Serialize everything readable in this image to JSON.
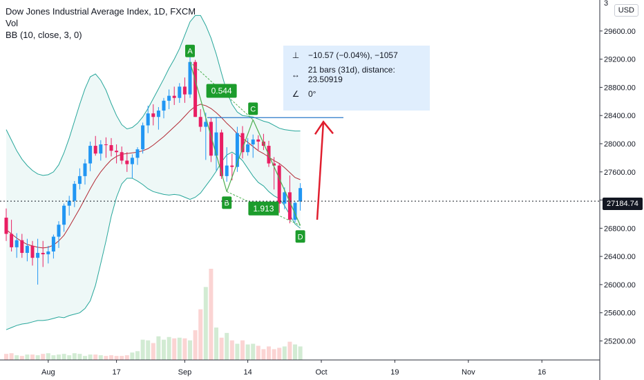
{
  "legend": {
    "title": "Dow Jones Industrial Average Index, 1D, FXCM",
    "volume": "Vol",
    "bb": "BB (10, close, 3, 0)"
  },
  "currency": "USD",
  "measure": {
    "price_change": "−10.57 (−0.04%), −1057",
    "bars": "21 bars (31d), distance: 23.50919",
    "angle": "0°"
  },
  "current_price": "27184.74",
  "colors": {
    "up": "#2196f3",
    "down": "#e91e63",
    "pattern": "#4caf50",
    "band": "#26a69a",
    "basis": "#b22833",
    "arrow": "#e01e2e",
    "hline": "#2a79c9"
  },
  "chart_data": {
    "type": "candlestick",
    "y_axis_ticks": [
      "25200.00",
      "25600.00",
      "26000.00",
      "26400.00",
      "26800.00",
      "27200.00",
      "27600.00",
      "28000.00",
      "28400.00",
      "28800.00",
      "29200.00",
      "29600.00"
    ],
    "y_axis_top_partial": "3",
    "x_axis_ticks": [
      "Aug",
      "17",
      "Sep",
      "14",
      "Oct",
      "19",
      "Nov",
      "16"
    ],
    "ylim": [
      24930,
      30040
    ],
    "candles": [
      [
        26950,
        27080,
        26620,
        26720
      ],
      [
        26720,
        26920,
        26470,
        26530
      ],
      [
        26530,
        26730,
        26380,
        26630
      ],
      [
        26630,
        26720,
        26380,
        26450
      ],
      [
        26450,
        26650,
        26330,
        26550
      ],
      [
        26550,
        26620,
        26270,
        26380
      ],
      [
        26380,
        26650,
        26000,
        26450
      ],
      [
        26450,
        26620,
        26250,
        26430
      ],
      [
        26430,
        26550,
        26300,
        26470
      ],
      [
        26470,
        26710,
        26370,
        26680
      ],
      [
        26680,
        26900,
        26520,
        26850
      ],
      [
        26850,
        27150,
        26750,
        27120
      ],
      [
        27120,
        27260,
        26980,
        27190
      ],
      [
        27190,
        27470,
        27100,
        27430
      ],
      [
        27430,
        27650,
        27350,
        27540
      ],
      [
        27540,
        27780,
        27420,
        27720
      ],
      [
        27720,
        28030,
        27610,
        27970
      ],
      [
        27970,
        28110,
        27830,
        27860
      ],
      [
        27860,
        28050,
        27760,
        27990
      ],
      [
        27990,
        28090,
        27800,
        27980
      ],
      [
        27980,
        28080,
        27820,
        27900
      ],
      [
        27900,
        27990,
        27720,
        27880
      ],
      [
        27880,
        27960,
        27710,
        27760
      ],
      [
        27760,
        27880,
        27600,
        27710
      ],
      [
        27710,
        27850,
        27510,
        27800
      ],
      [
        27800,
        27950,
        27700,
        27920
      ],
      [
        27920,
        28300,
        27860,
        28260
      ],
      [
        28260,
        28540,
        28150,
        28430
      ],
      [
        28430,
        28560,
        28260,
        28380
      ],
      [
        28380,
        28520,
        28200,
        28470
      ],
      [
        28470,
        28650,
        28360,
        28610
      ],
      [
        28610,
        28770,
        28490,
        28680
      ],
      [
        28680,
        28810,
        28550,
        28650
      ],
      [
        28650,
        28860,
        28580,
        28810
      ],
      [
        28810,
        28940,
        28580,
        28700
      ],
      [
        28700,
        29290,
        28650,
        29160
      ],
      [
        29160,
        29190,
        28380,
        28380
      ],
      [
        28380,
        28490,
        28170,
        28240
      ],
      [
        28240,
        28440,
        27770,
        28310
      ],
      [
        28310,
        28370,
        27740,
        27830
      ],
      [
        27830,
        28380,
        27620,
        28160
      ],
      [
        28160,
        28200,
        27500,
        27540
      ],
      [
        27540,
        27950,
        27460,
        27690
      ],
      [
        27690,
        27860,
        27480,
        27670
      ],
      [
        27670,
        28240,
        27600,
        28150
      ],
      [
        28150,
        28250,
        27790,
        27880
      ],
      [
        27880,
        28080,
        27830,
        27990
      ],
      [
        27990,
        28130,
        27800,
        28060
      ],
      [
        28060,
        28120,
        27910,
        28030
      ],
      [
        28030,
        28140,
        27910,
        27970
      ],
      [
        27970,
        28040,
        27670,
        27720
      ],
      [
        27720,
        27810,
        27350,
        27690
      ],
      [
        27690,
        27720,
        27020,
        27150
      ],
      [
        27150,
        27380,
        27070,
        27310
      ],
      [
        27310,
        27550,
        26870,
        26920
      ],
      [
        26920,
        27180,
        26880,
        27160
      ],
      [
        27180,
        27440,
        27050,
        27370
      ]
    ],
    "volume": [
      9,
      10,
      7,
      6,
      8,
      8,
      7,
      9,
      10,
      7,
      8,
      9,
      7,
      10,
      9,
      6,
      8,
      8,
      7,
      6,
      7,
      6,
      6,
      7,
      11,
      13,
      30,
      29,
      25,
      35,
      30,
      34,
      32,
      33,
      32,
      29,
      44,
      75,
      108,
      135,
      48,
      33,
      40,
      29,
      24,
      29,
      23,
      24,
      21,
      16,
      20,
      16,
      18,
      20,
      27,
      23,
      20
    ],
    "basis": [
      26780,
      26720,
      26660,
      26610,
      26570,
      26550,
      26530,
      26520,
      26530,
      26560,
      26620,
      26700,
      26820,
      26950,
      27080,
      27220,
      27360,
      27490,
      27600,
      27690,
      27770,
      27820,
      27850,
      27860,
      27870,
      27880,
      27900,
      27930,
      27980,
      28040,
      28100,
      28170,
      28240,
      28310,
      28390,
      28470,
      28530,
      28560,
      28540,
      28500,
      28440,
      28370,
      28290,
      28220,
      28140,
      28080,
      28020,
      27960,
      27900,
      27860,
      27810,
      27760,
      27720,
      27660,
      27590,
      27520,
      27490
    ],
    "upper": [
      28200,
      28050,
      27900,
      27780,
      27690,
      27620,
      27570,
      27550,
      27560,
      27600,
      27700,
      27870,
      28080,
      28320,
      28560,
      28780,
      28950,
      28990,
      28900,
      28760,
      28570,
      28400,
      28270,
      28210,
      28230,
      28290,
      28380,
      28500,
      28640,
      28780,
      28920,
      29070,
      29200,
      29350,
      29540,
      29730,
      29820,
      29820,
      29680,
      29500,
      29270,
      29000,
      28740,
      28560,
      28450,
      28400,
      28390,
      28380,
      28350,
      28320,
      28300,
      28260,
      28220,
      28200,
      28190,
      28180,
      28180
    ],
    "lower": [
      25360,
      25390,
      25420,
      25440,
      25450,
      25470,
      25490,
      25490,
      25500,
      25520,
      25540,
      25530,
      25560,
      25580,
      25600,
      25660,
      25770,
      25990,
      26300,
      26620,
      26970,
      27240,
      27430,
      27510,
      27510,
      27470,
      27420,
      27360,
      27320,
      27300,
      27280,
      27270,
      27280,
      27270,
      27240,
      27210,
      27240,
      27300,
      27400,
      27500,
      27610,
      27740,
      27840,
      27880,
      27830,
      27760,
      27650,
      27540,
      27450,
      27400,
      27320,
      27260,
      27220,
      27120,
      26990,
      26860,
      26800
    ],
    "harmonic_pattern": {
      "points": [
        {
          "label": "A",
          "bar": 35,
          "price": 29160
        },
        {
          "label": "B",
          "bar": 42,
          "price": 27320
        },
        {
          "label": "C",
          "bar": 47,
          "price": 28340
        },
        {
          "label": "D",
          "bar": 56,
          "price": 26840
        }
      ],
      "ratios": [
        {
          "text": "0.544",
          "between": "A-C"
        },
        {
          "text": "1.913",
          "between": "B-D"
        }
      ]
    },
    "horizontal_level": 28370,
    "current_price_line": 27184.74,
    "projection_arrow": {
      "from_price": 26920,
      "to_price": 28370
    }
  }
}
